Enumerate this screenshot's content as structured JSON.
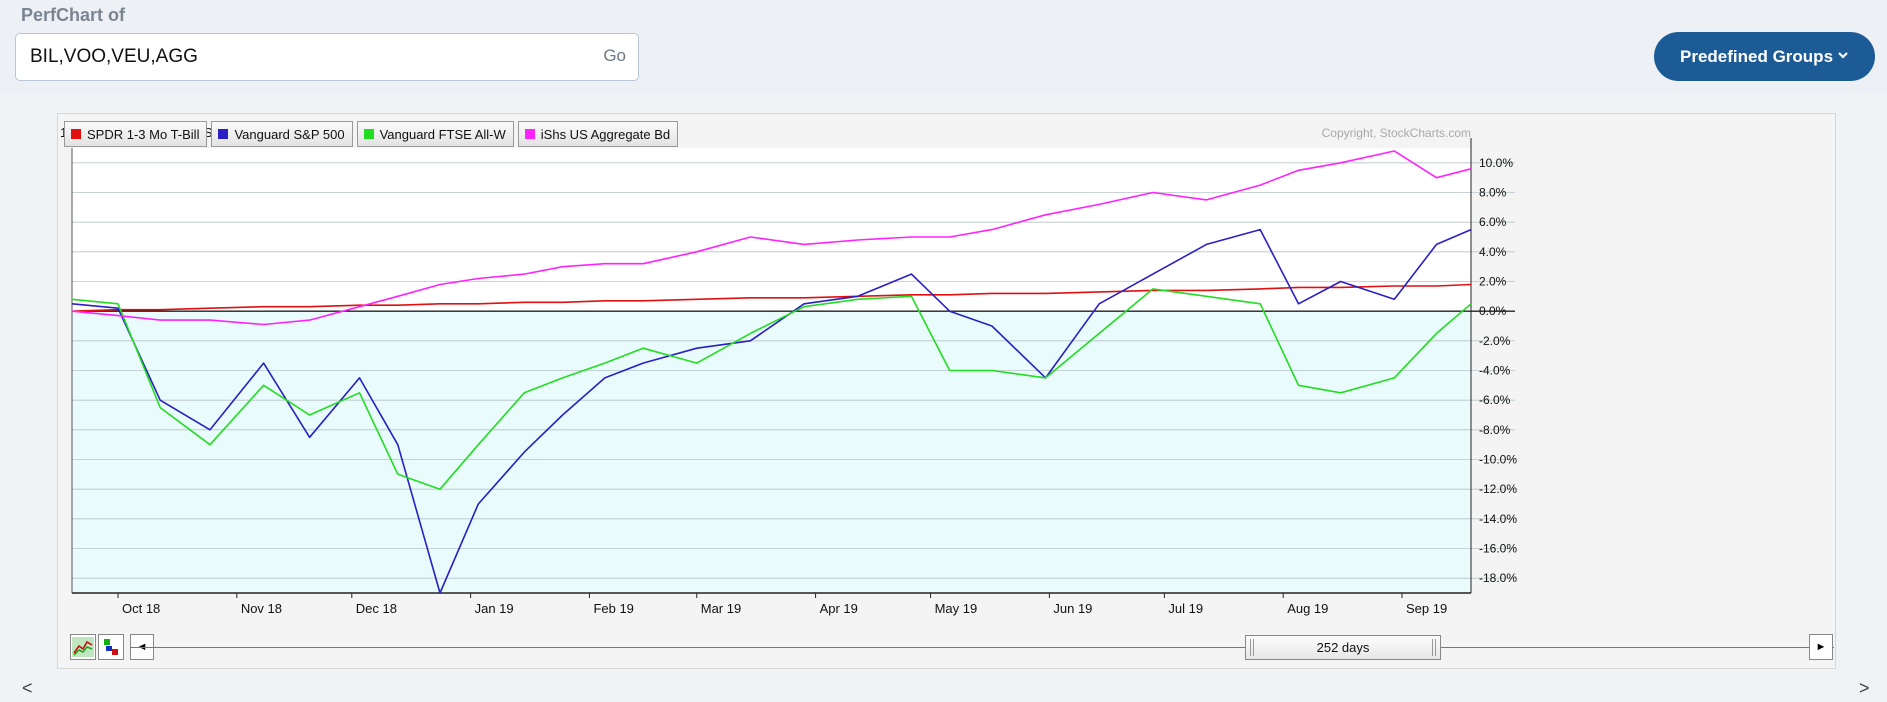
{
  "page": {
    "label": "PerfChart of",
    "symbols_value": "BIL,VOO,VEU,AGG",
    "go_label": "Go",
    "groups_label": "Predefined Groups"
  },
  "chart_data": {
    "type": "line",
    "date_range": "19 September 2018 - 19 September 2019",
    "copyright": "Copyright, StockCharts.com",
    "x_ticks": [
      "Oct 18",
      "Nov 18",
      "Dec 18",
      "Jan 19",
      "Feb 19",
      "Mar 19",
      "Apr 19",
      "May 19",
      "Jun 19",
      "Jul 19",
      "Aug 19",
      "Sep 19"
    ],
    "y_ticks": [
      "10.0%",
      "8.0%",
      "6.0%",
      "4.0%",
      "2.0%",
      "0.0%",
      "-2.0%",
      "-4.0%",
      "-6.0%",
      "-8.0%",
      "-10.0%",
      "-12.0%",
      "-14.0%",
      "-16.0%",
      "-18.0%"
    ],
    "ylim": [
      -19.0,
      11.0
    ],
    "x": [
      "2018-09-19",
      "2018-10-01",
      "2018-10-12",
      "2018-10-25",
      "2018-11-08",
      "2018-11-20",
      "2018-12-03",
      "2018-12-13",
      "2018-12-24",
      "2019-01-03",
      "2019-01-15",
      "2019-01-25",
      "2019-02-05",
      "2019-02-15",
      "2019-03-01",
      "2019-03-15",
      "2019-03-29",
      "2019-04-12",
      "2019-04-26",
      "2019-05-06",
      "2019-05-17",
      "2019-05-31",
      "2019-06-14",
      "2019-06-28",
      "2019-07-12",
      "2019-07-26",
      "2019-08-05",
      "2019-08-16",
      "2019-08-30",
      "2019-09-10",
      "2019-09-19"
    ],
    "series": [
      {
        "name": "SPDR 1-3 Mo T-Bill",
        "color": "#e01010",
        "values": [
          0.0,
          0.1,
          0.1,
          0.2,
          0.3,
          0.3,
          0.4,
          0.4,
          0.5,
          0.5,
          0.6,
          0.6,
          0.7,
          0.7,
          0.8,
          0.9,
          0.9,
          1.0,
          1.1,
          1.1,
          1.2,
          1.2,
          1.3,
          1.4,
          1.4,
          1.5,
          1.6,
          1.6,
          1.7,
          1.7,
          1.8
        ]
      },
      {
        "name": "Vanguard S&P 500",
        "color": "#2a1fc4",
        "values": [
          0.5,
          0.2,
          -6.0,
          -8.0,
          -3.5,
          -8.5,
          -4.5,
          -9.0,
          -19.0,
          -13.0,
          -9.5,
          -7.0,
          -4.5,
          -3.5,
          -2.5,
          -2.0,
          0.5,
          1.0,
          2.5,
          0.0,
          -1.0,
          -4.5,
          0.5,
          2.5,
          4.5,
          5.5,
          0.5,
          2.0,
          0.8,
          4.5,
          5.5
        ]
      },
      {
        "name": "Vanguard FTSE All-W",
        "color": "#22dd22",
        "values": [
          0.8,
          0.5,
          -6.5,
          -9.0,
          -5.0,
          -7.0,
          -5.5,
          -11.0,
          -12.0,
          -9.0,
          -5.5,
          -4.5,
          -3.5,
          -2.5,
          -3.5,
          -1.5,
          0.3,
          0.8,
          1.0,
          -4.0,
          -4.0,
          -4.5,
          -1.5,
          1.5,
          1.0,
          0.5,
          -5.0,
          -5.5,
          -4.5,
          -1.5,
          0.5
        ]
      },
      {
        "name": "iShs US Aggregate Bd",
        "color": "#ff22ff",
        "values": [
          0.0,
          -0.3,
          -0.6,
          -0.6,
          -0.9,
          -0.6,
          0.3,
          1.0,
          1.8,
          2.2,
          2.5,
          3.0,
          3.2,
          3.2,
          4.0,
          5.0,
          4.5,
          4.8,
          5.0,
          5.0,
          5.5,
          6.5,
          7.2,
          8.0,
          7.5,
          8.5,
          9.5,
          10.0,
          10.8,
          9.0,
          9.6
        ]
      }
    ]
  },
  "navigator": {
    "days_label": "252 days",
    "left_arrow": "◄",
    "right_arrow": "►"
  },
  "scrollbar": {
    "left_arrow": "<",
    "right_arrow": ">"
  },
  "icons": [
    "line-chart-icon",
    "bar-chart-icon",
    "chevron-down-icon"
  ]
}
